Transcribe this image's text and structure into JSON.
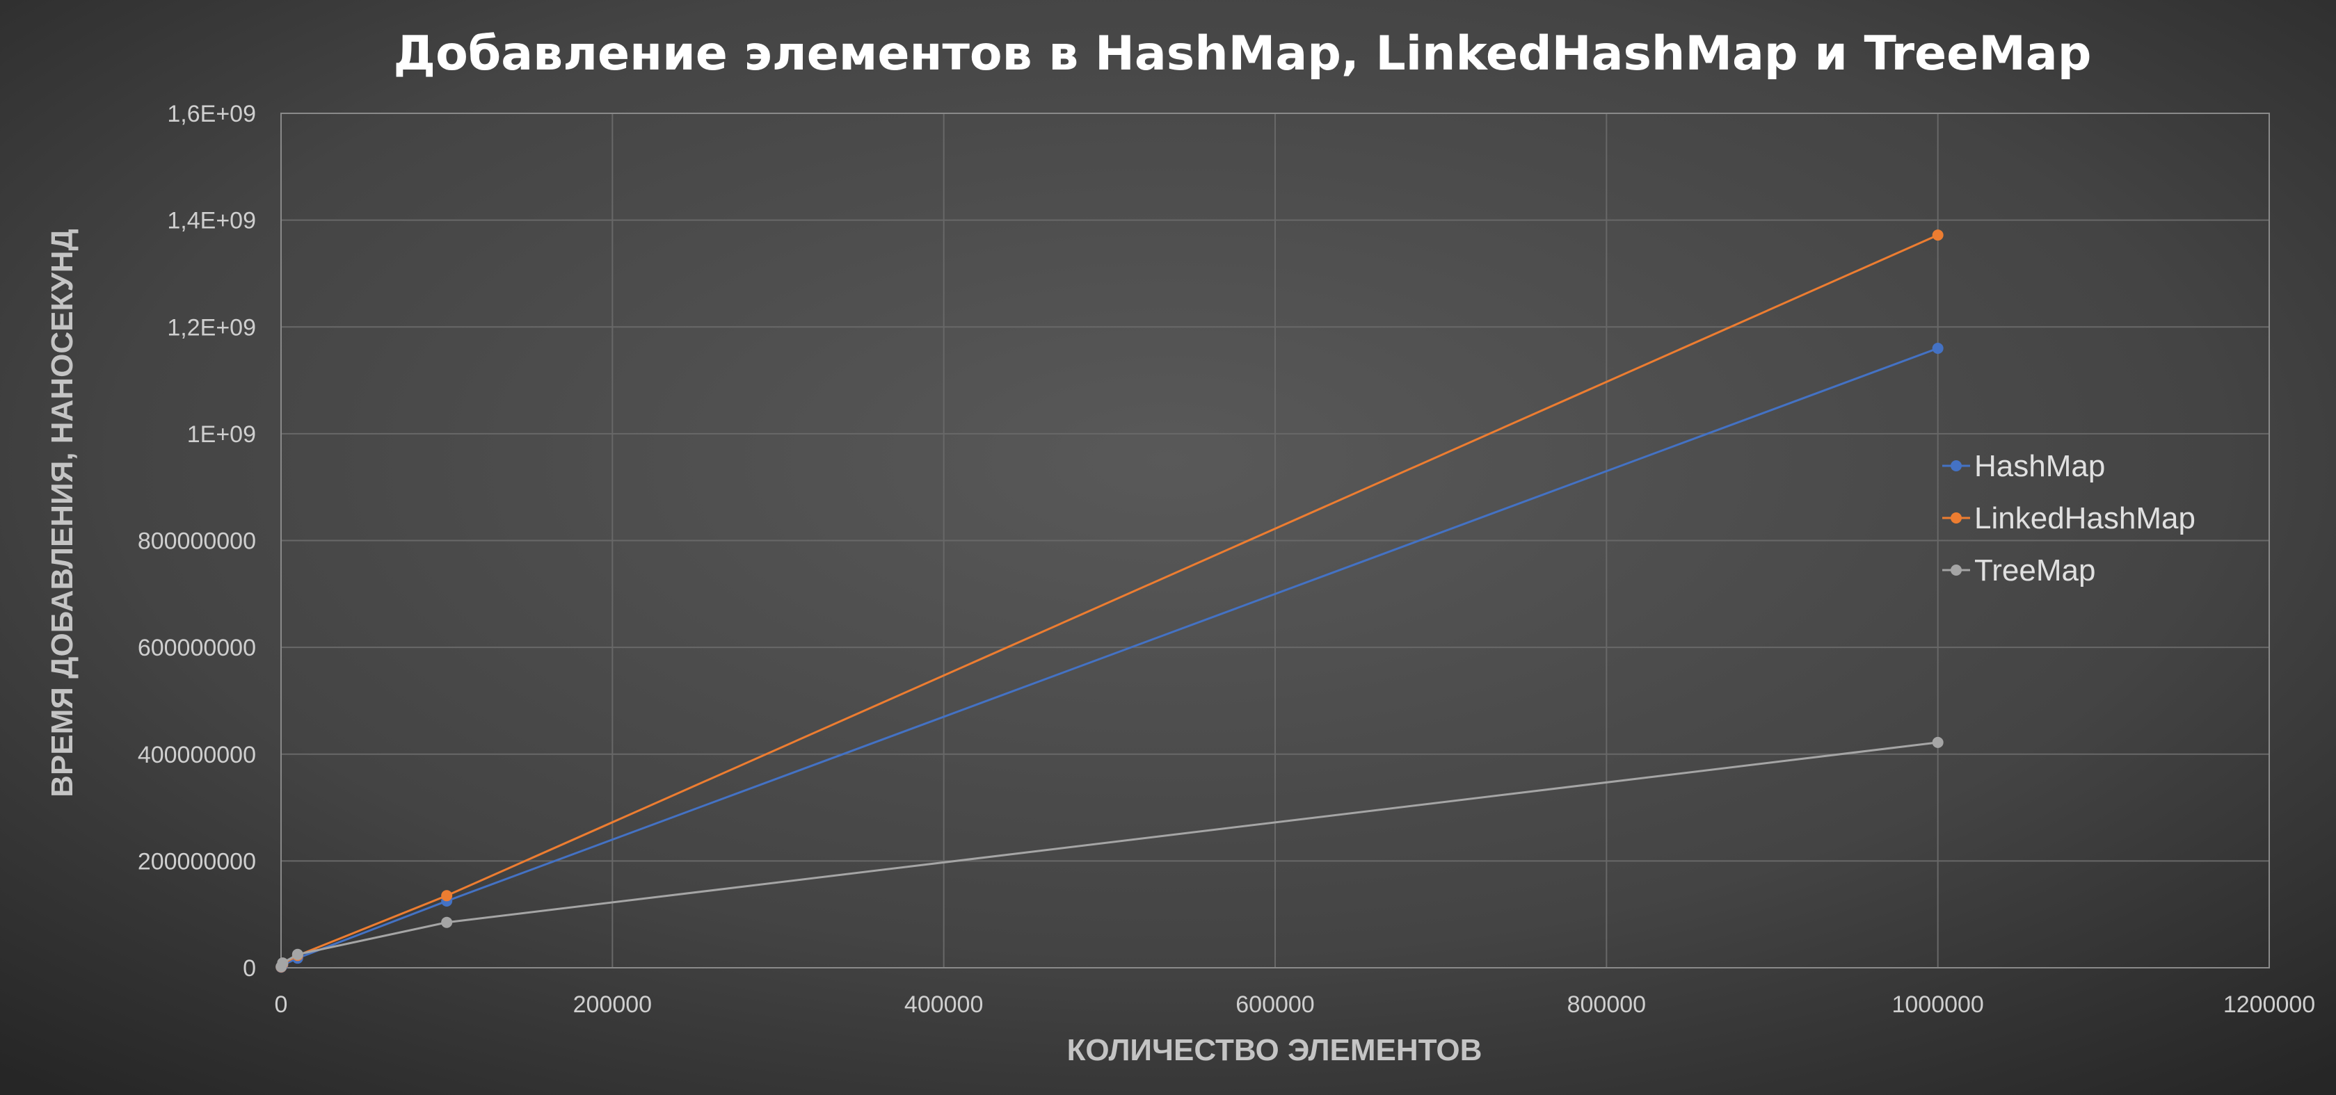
{
  "chart_data": {
    "type": "line",
    "title": "Добавление элементов в HashMap, LinkedHashMap и TreeMap",
    "xlabel": "КОЛИЧЕСТВО ЭЛЕМЕНТОВ",
    "ylabel": "ВРЕМЯ ДОБАВЛЕНИЯ, НАНОСЕКУНД",
    "xlim": [
      0,
      1200000
    ],
    "ylim": [
      0,
      1600000000
    ],
    "x_ticks": [
      0,
      200000,
      400000,
      600000,
      800000,
      1000000,
      1200000
    ],
    "x_tick_labels": [
      "0",
      "200000",
      "400000",
      "600000",
      "800000",
      "1000000",
      "1200000"
    ],
    "y_ticks": [
      0,
      200000000,
      400000000,
      600000000,
      800000000,
      1000000000,
      1200000000,
      1400000000,
      1600000000
    ],
    "y_tick_labels": [
      "0",
      "200000000",
      "400000000",
      "600000000",
      "800000000",
      "1E+09",
      "1,2E+09",
      "1,4E+09",
      "1,6E+09"
    ],
    "grid": true,
    "legend_position": "right",
    "series": [
      {
        "name": "HashMap",
        "color": "#4472c4",
        "x": [
          100,
          1000,
          10000,
          100000,
          1000000
        ],
        "y": [
          1000000,
          5000000,
          18000000,
          125000000,
          1160000000
        ]
      },
      {
        "name": "LinkedHashMap",
        "color": "#ed7d31",
        "x": [
          100,
          1000,
          10000,
          100000,
          1000000
        ],
        "y": [
          1500000,
          7000000,
          23000000,
          135000000,
          1372000000
        ]
      },
      {
        "name": "TreeMap",
        "color": "#a5a5a5",
        "x": [
          100,
          1000,
          10000,
          100000,
          1000000
        ],
        "y": [
          2000000,
          9000000,
          25000000,
          85000000,
          422000000
        ]
      }
    ]
  }
}
